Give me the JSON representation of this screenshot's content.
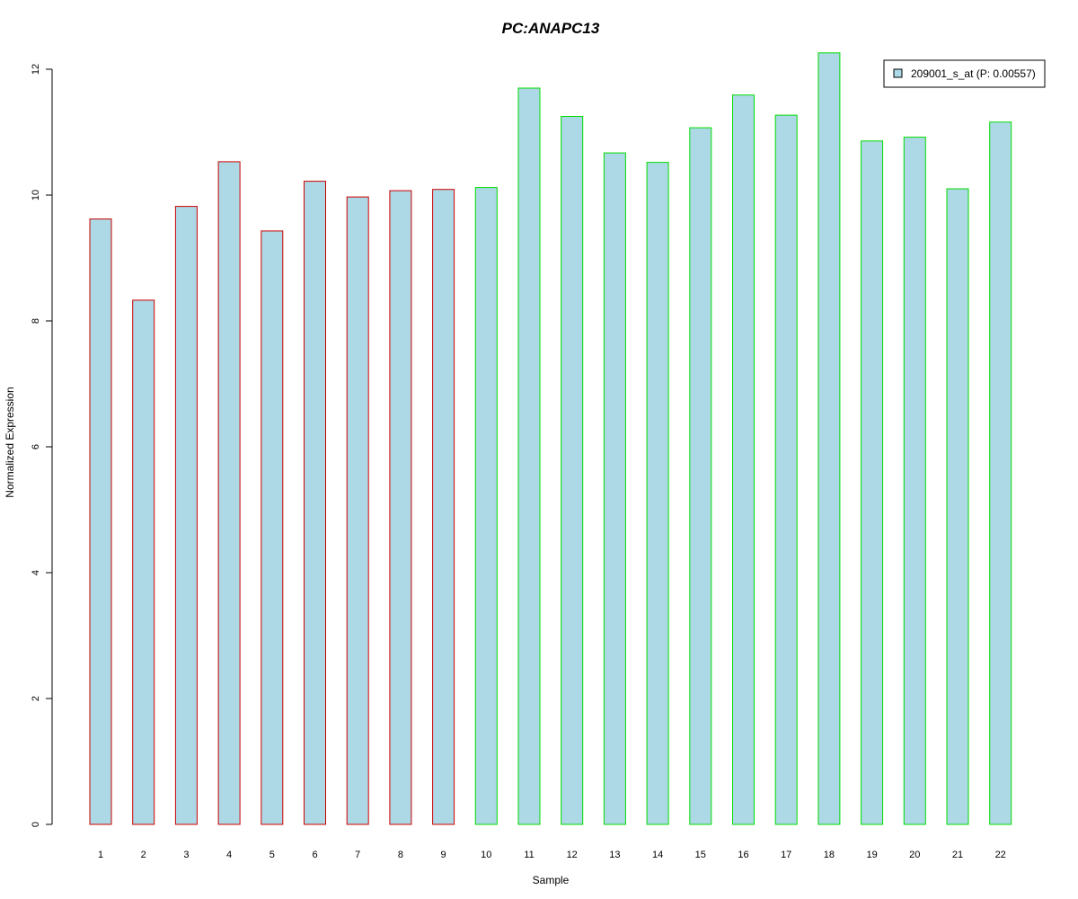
{
  "chart_data": {
    "type": "bar",
    "title": "PC:ANAPC13",
    "title_color": "#0000cc",
    "xlabel": "Sample",
    "ylabel": "Normalized Expression",
    "ylim": [
      0,
      12
    ],
    "yticks": [
      "0",
      "2",
      "4",
      "6",
      "8",
      "10",
      "12"
    ],
    "categories": [
      "1",
      "2",
      "3",
      "4",
      "5",
      "6",
      "7",
      "8",
      "9",
      "10",
      "11",
      "12",
      "13",
      "14",
      "15",
      "16",
      "17",
      "18",
      "19",
      "20",
      "21",
      "22"
    ],
    "series": [
      {
        "name": "209001_s_at (P: 0.00557)",
        "fill": "#add8e6",
        "values": [
          9.62,
          8.33,
          9.82,
          10.53,
          9.43,
          10.22,
          9.97,
          10.07,
          10.09,
          10.12,
          11.7,
          11.25,
          10.67,
          10.52,
          11.07,
          11.59,
          11.27,
          12.26,
          10.86,
          10.92,
          10.1,
          11.16
        ]
      }
    ],
    "group_borders": [
      {
        "color": "#cc0000",
        "from": 1,
        "to": 9
      },
      {
        "color": "#00dd00",
        "from": 10,
        "to": 22
      }
    ],
    "legend": "top-right",
    "grid": false
  }
}
